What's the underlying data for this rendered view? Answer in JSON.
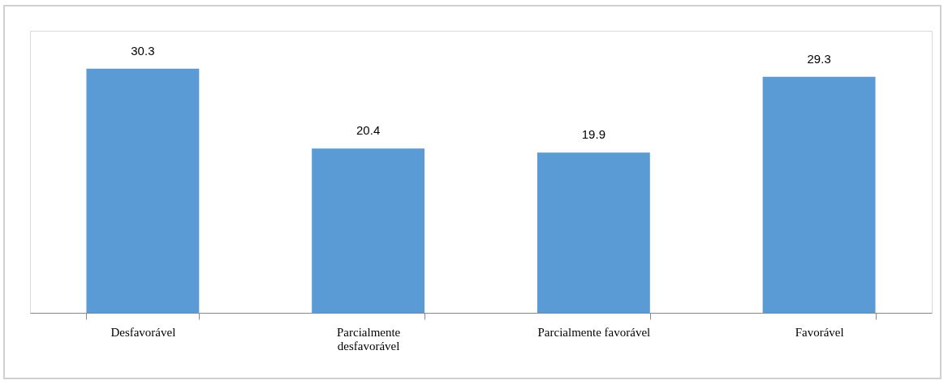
{
  "chart_data": {
    "type": "bar",
    "categories": [
      "Desfavorável",
      "Parcialmente desfavorável",
      "Parcialmente favorável",
      "Favorável"
    ],
    "values": [
      30.3,
      20.4,
      19.9,
      29.3
    ],
    "color": "#5b9bd5",
    "ylim": [
      0,
      35
    ],
    "data_labels": true,
    "grid": false
  }
}
